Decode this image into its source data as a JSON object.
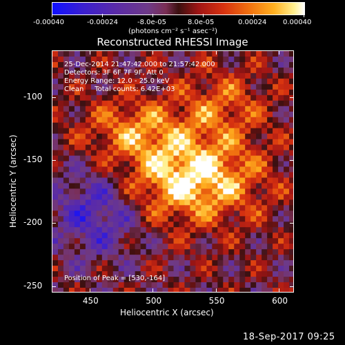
{
  "colorbar": {
    "ticks": [
      "-0.00040",
      "-0.00024",
      "-8.0e-05",
      "8.0e-05",
      "0.00024",
      "0.00040"
    ],
    "unit": "(photons cm⁻² s⁻¹ asec⁻²)"
  },
  "chart_data": {
    "type": "heatmap",
    "title": "Reconstructed RHESSI Image",
    "xlabel": "Heliocentric X (arcsec)",
    "ylabel": "Heliocentric Y (arcsec)",
    "xlim": [
      420,
      612
    ],
    "ylim": [
      -255,
      -63
    ],
    "x_ticks": [
      "450",
      "500",
      "550",
      "600"
    ],
    "y_ticks": [
      "-100",
      "-150",
      "-200",
      "-250"
    ],
    "zlim": [
      -0.0004,
      0.0004
    ],
    "peak": [
      530,
      -164
    ],
    "annotations": {
      "time": "25-Dec-2014 21:47:42.000 to 21:57:42.000",
      "detectors": "Detectors: 3F 6F 7F 9F, Att 0",
      "energy": "Energy Range: 12.0 - 25.0 keV",
      "clean": "Clean     Total counts: 6.42E+03",
      "peak_label": "Position of Peak = [530,-164]"
    }
  },
  "timestamp": "18-Sep-2017 09:25"
}
